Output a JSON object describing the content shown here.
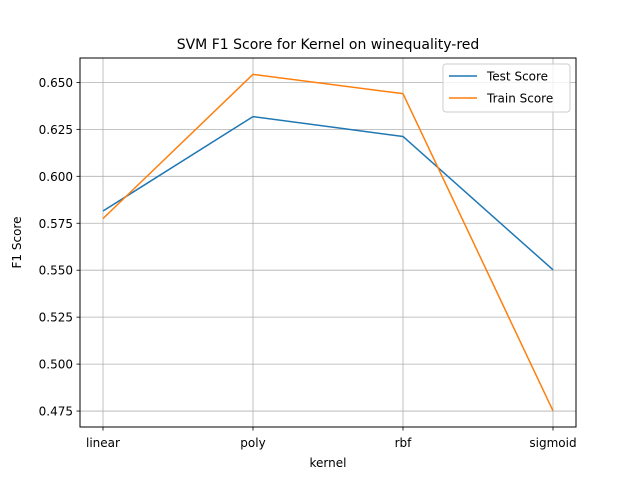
{
  "chart_data": {
    "type": "line",
    "title": "SVM F1 Score for Kernel on winequality-red",
    "xlabel": "kernel",
    "ylabel": "F1 Score",
    "categories": [
      "linear",
      "poly",
      "rbf",
      "sigmoid"
    ],
    "series": [
      {
        "name": "Test Score",
        "color": "#1f77b4",
        "values": [
          0.5815,
          0.6318,
          0.6212,
          0.5502
        ]
      },
      {
        "name": "Train Score",
        "color": "#ff7f0e",
        "values": [
          0.5775,
          0.6543,
          0.644,
          0.4751
        ]
      }
    ],
    "ylim": [
      0.4665,
      0.663
    ],
    "yticks": [
      0.475,
      0.5,
      0.525,
      0.55,
      0.575,
      0.6,
      0.625,
      0.65
    ],
    "ytick_labels": [
      "0.475",
      "0.500",
      "0.525",
      "0.550",
      "0.575",
      "0.600",
      "0.625",
      "0.650"
    ],
    "grid": true,
    "legend_position": "top-right"
  }
}
